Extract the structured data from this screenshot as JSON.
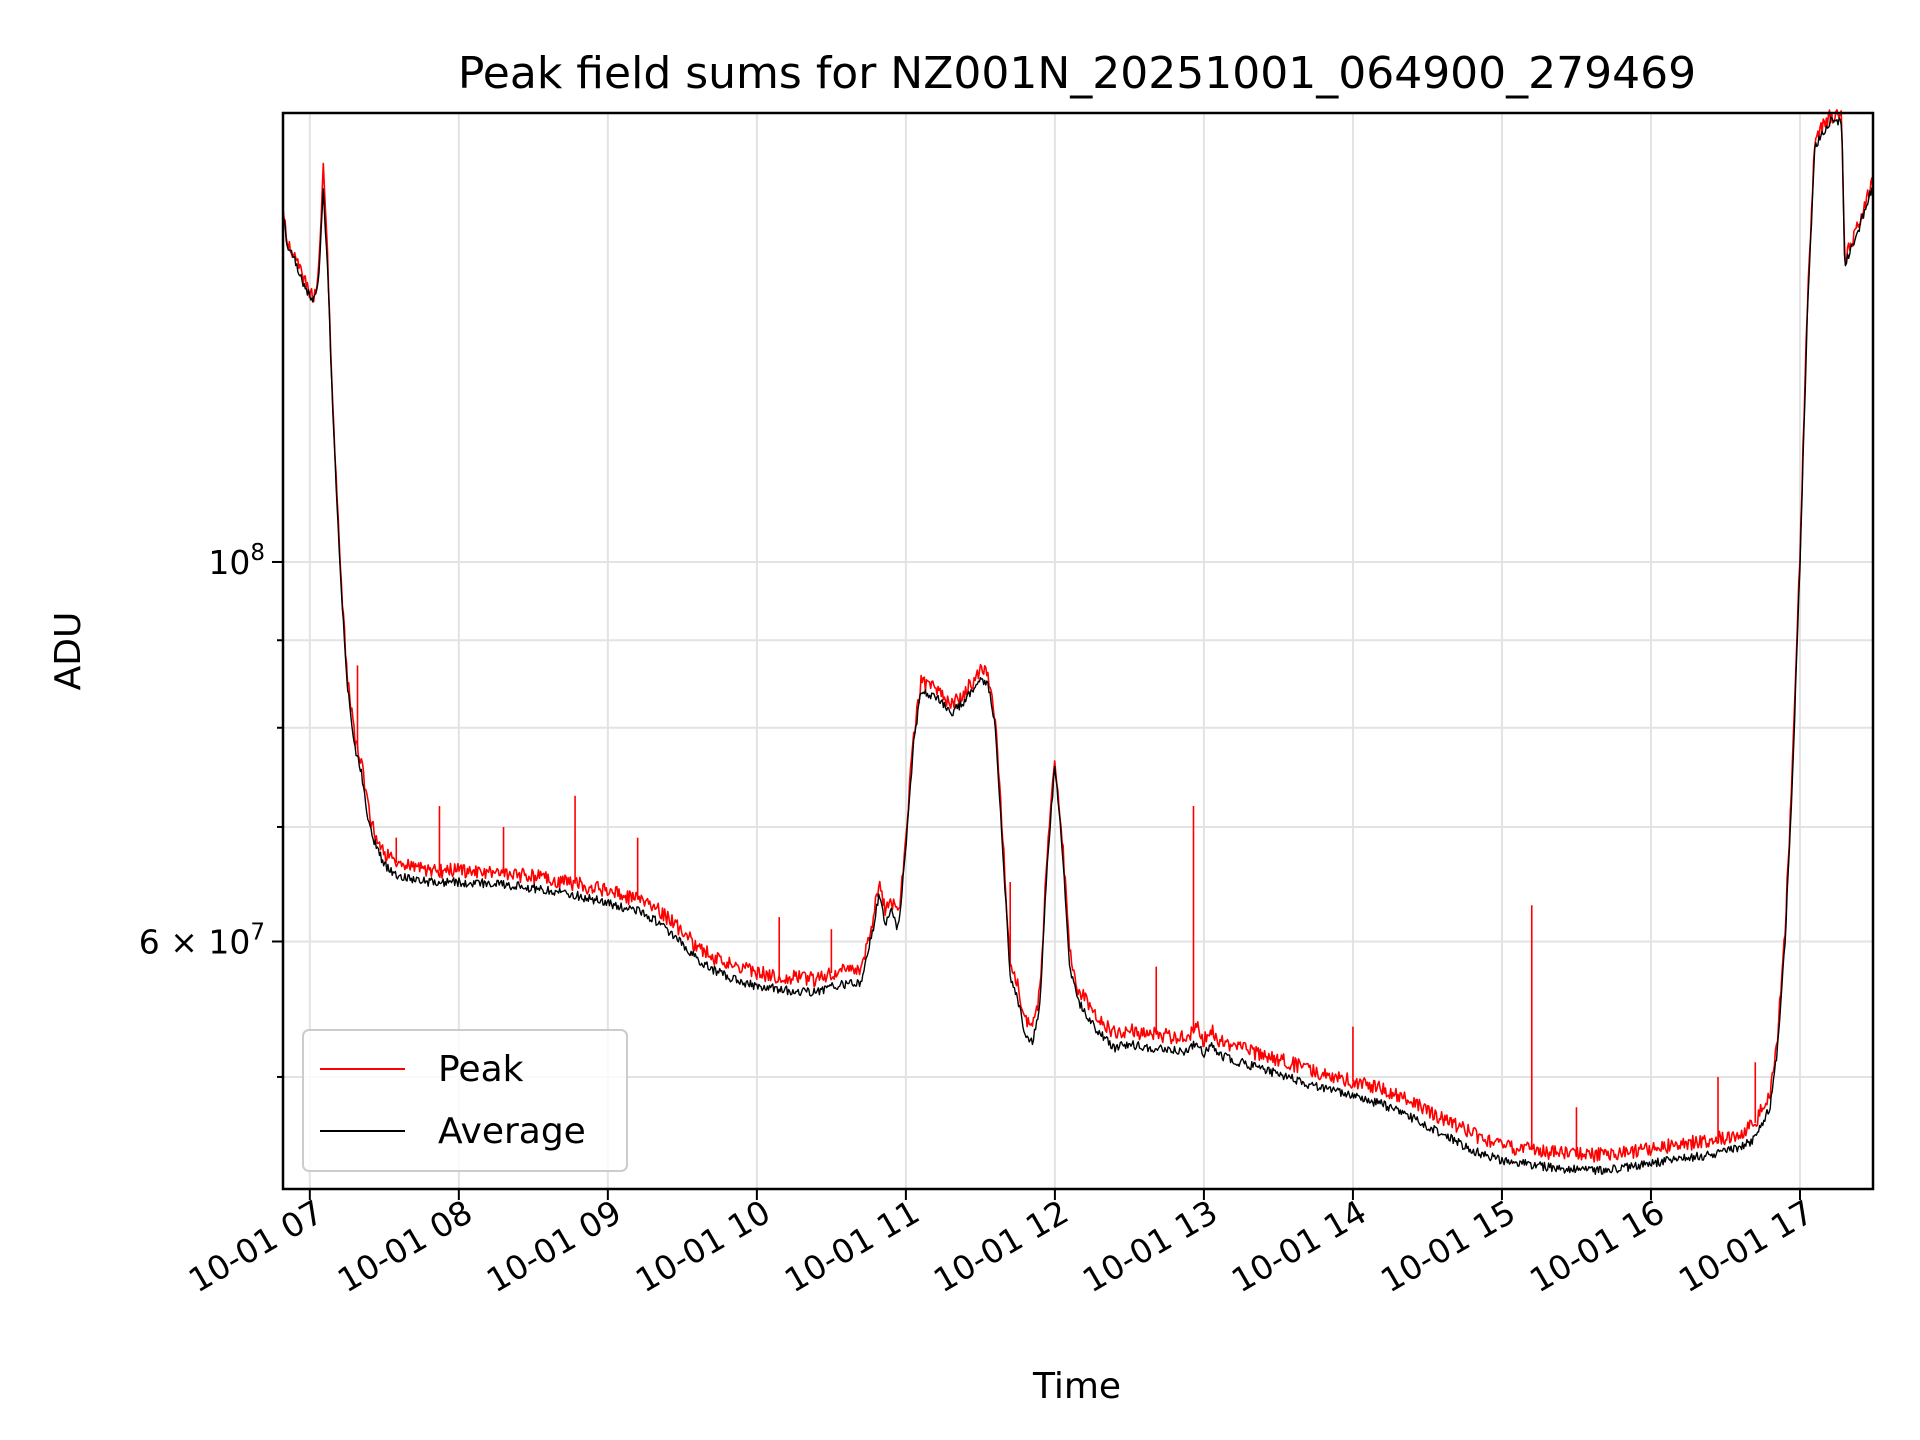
{
  "chart_data": {
    "type": "line",
    "title": "Peak field sums for NZ001N_20251001_064900_279469",
    "xlabel": "Time",
    "ylabel": "ADU",
    "yscale": "log",
    "grid": true,
    "legend_position": "lower-left",
    "xlim": [
      6.82,
      17.49
    ],
    "ylim": [
      43000000,
      183000000
    ],
    "x_ticks": [
      {
        "value": 7,
        "label": "10-01 07"
      },
      {
        "value": 8,
        "label": "10-01 08"
      },
      {
        "value": 9,
        "label": "10-01 09"
      },
      {
        "value": 10,
        "label": "10-01 10"
      },
      {
        "value": 11,
        "label": "10-01 11"
      },
      {
        "value": 12,
        "label": "10-01 12"
      },
      {
        "value": 13,
        "label": "10-01 13"
      },
      {
        "value": 14,
        "label": "10-01 14"
      },
      {
        "value": 15,
        "label": "10-01 15"
      },
      {
        "value": 16,
        "label": "10-01 16"
      },
      {
        "value": 17,
        "label": "10-01 17"
      }
    ],
    "y_major_ticks": [
      {
        "value": 100000000,
        "label_base": "10",
        "label_exp": "8"
      },
      {
        "value": 60000000,
        "label_mantissa": "6",
        "label_times": "×",
        "label_base": "10",
        "label_exp": "7"
      }
    ],
    "y_minor_grid": [
      50000000,
      70000000,
      80000000,
      90000000
    ],
    "series": [
      {
        "name": "Average",
        "color": "#000000",
        "points": [
          [
            6.82,
            160000000
          ],
          [
            6.85,
            153000000
          ],
          [
            6.9,
            150000000
          ],
          [
            6.95,
            146000000
          ],
          [
            7.0,
            143000000
          ],
          [
            7.03,
            142000000
          ],
          [
            7.06,
            146000000
          ],
          [
            7.09,
            165000000
          ],
          [
            7.12,
            148000000
          ],
          [
            7.15,
            125000000
          ],
          [
            7.2,
            100000000
          ],
          [
            7.25,
            85000000
          ],
          [
            7.3,
            78000000
          ],
          [
            7.35,
            75000000
          ],
          [
            7.4,
            70000000
          ],
          [
            7.45,
            68000000
          ],
          [
            7.5,
            66500000
          ],
          [
            7.6,
            65500000
          ],
          [
            7.8,
            65000000
          ],
          [
            8.0,
            65000000
          ],
          [
            8.3,
            64800000
          ],
          [
            8.6,
            64300000
          ],
          [
            8.8,
            63800000
          ],
          [
            9.0,
            63200000
          ],
          [
            9.2,
            62500000
          ],
          [
            9.35,
            61500000
          ],
          [
            9.5,
            59800000
          ],
          [
            9.6,
            58600000
          ],
          [
            9.7,
            57800000
          ],
          [
            9.85,
            57000000
          ],
          [
            10.0,
            56500000
          ],
          [
            10.2,
            56200000
          ],
          [
            10.4,
            56000000
          ],
          [
            10.5,
            56500000
          ],
          [
            10.7,
            56800000
          ],
          [
            10.78,
            61000000
          ],
          [
            10.82,
            64000000
          ],
          [
            10.86,
            61500000
          ],
          [
            10.9,
            62500000
          ],
          [
            10.95,
            61000000
          ],
          [
            11.0,
            68000000
          ],
          [
            11.05,
            78000000
          ],
          [
            11.1,
            84000000
          ],
          [
            11.2,
            83500000
          ],
          [
            11.3,
            81500000
          ],
          [
            11.4,
            83000000
          ],
          [
            11.5,
            85500000
          ],
          [
            11.55,
            85000000
          ],
          [
            11.6,
            80000000
          ],
          [
            11.65,
            68000000
          ],
          [
            11.7,
            57000000
          ],
          [
            11.75,
            55500000
          ],
          [
            11.8,
            53000000
          ],
          [
            11.85,
            52500000
          ],
          [
            11.9,
            55000000
          ],
          [
            11.95,
            67000000
          ],
          [
            12.0,
            76000000
          ],
          [
            12.05,
            68000000
          ],
          [
            12.1,
            58000000
          ],
          [
            12.15,
            55500000
          ],
          [
            12.2,
            54500000
          ],
          [
            12.3,
            53000000
          ],
          [
            12.4,
            52000000
          ],
          [
            12.5,
            52300000
          ],
          [
            12.6,
            52000000
          ],
          [
            12.8,
            51800000
          ],
          [
            12.9,
            51800000
          ],
          [
            12.95,
            52500000
          ],
          [
            13.0,
            51500000
          ],
          [
            13.05,
            52200000
          ],
          [
            13.1,
            51500000
          ],
          [
            13.3,
            50800000
          ],
          [
            13.5,
            50200000
          ],
          [
            13.7,
            49500000
          ],
          [
            14.0,
            48700000
          ],
          [
            14.2,
            48200000
          ],
          [
            14.4,
            47300000
          ],
          [
            14.6,
            46300000
          ],
          [
            14.8,
            45300000
          ],
          [
            15.0,
            44700000
          ],
          [
            15.2,
            44400000
          ],
          [
            15.4,
            44200000
          ],
          [
            15.6,
            44100000
          ],
          [
            15.8,
            44200000
          ],
          [
            16.0,
            44500000
          ],
          [
            16.2,
            44800000
          ],
          [
            16.4,
            45000000
          ],
          [
            16.5,
            45200000
          ],
          [
            16.6,
            45500000
          ],
          [
            16.7,
            46000000
          ],
          [
            16.8,
            48000000
          ],
          [
            16.85,
            52000000
          ],
          [
            16.9,
            60000000
          ],
          [
            16.95,
            75000000
          ],
          [
            17.0,
            100000000
          ],
          [
            17.05,
            140000000
          ],
          [
            17.1,
            175000000
          ],
          [
            17.2,
            181000000
          ],
          [
            17.28,
            181000000
          ],
          [
            17.3,
            149000000
          ],
          [
            17.4,
            157000000
          ],
          [
            17.49,
            166000000
          ]
        ]
      },
      {
        "name": "Peak",
        "color": "#ff0000",
        "points": [
          [
            6.82,
            161000000
          ],
          [
            6.85,
            154000000
          ],
          [
            6.9,
            151000000
          ],
          [
            6.95,
            147000000
          ],
          [
            7.0,
            144000000
          ],
          [
            7.03,
            143000000
          ],
          [
            7.06,
            148000000
          ],
          [
            7.09,
            170000000
          ],
          [
            7.12,
            150000000
          ],
          [
            7.15,
            126000000
          ],
          [
            7.2,
            101000000
          ],
          [
            7.25,
            86000000
          ],
          [
            7.3,
            79000000
          ],
          [
            7.35,
            76000000
          ],
          [
            7.4,
            71000000
          ],
          [
            7.45,
            69000000
          ],
          [
            7.5,
            67500000
          ],
          [
            7.6,
            66500000
          ],
          [
            7.8,
            66000000
          ],
          [
            8.0,
            66000000
          ],
          [
            8.3,
            65800000
          ],
          [
            8.6,
            65300000
          ],
          [
            8.8,
            64800000
          ],
          [
            9.0,
            64200000
          ],
          [
            9.2,
            63500000
          ],
          [
            9.35,
            62500000
          ],
          [
            9.5,
            60800000
          ],
          [
            9.6,
            59600000
          ],
          [
            9.7,
            58800000
          ],
          [
            9.85,
            58000000
          ],
          [
            10.0,
            57500000
          ],
          [
            10.2,
            57200000
          ],
          [
            10.4,
            57000000
          ],
          [
            10.5,
            57500000
          ],
          [
            10.7,
            57800000
          ],
          [
            10.78,
            62000000
          ],
          [
            10.82,
            65000000
          ],
          [
            10.86,
            62500000
          ],
          [
            10.9,
            63500000
          ],
          [
            10.95,
            62000000
          ],
          [
            11.0,
            69000000
          ],
          [
            11.05,
            79000000
          ],
          [
            11.1,
            85000000
          ],
          [
            11.2,
            84500000
          ],
          [
            11.3,
            82500000
          ],
          [
            11.4,
            84000000
          ],
          [
            11.5,
            86500000
          ],
          [
            11.55,
            86000000
          ],
          [
            11.6,
            81000000
          ],
          [
            11.65,
            69000000
          ],
          [
            11.7,
            58000000
          ],
          [
            11.75,
            56500000
          ],
          [
            11.8,
            54000000
          ],
          [
            11.85,
            53500000
          ],
          [
            11.9,
            56000000
          ],
          [
            11.95,
            68000000
          ],
          [
            12.0,
            77000000
          ],
          [
            12.05,
            69000000
          ],
          [
            12.1,
            59000000
          ],
          [
            12.15,
            56500000
          ],
          [
            12.2,
            55500000
          ],
          [
            12.3,
            54000000
          ],
          [
            12.4,
            53000000
          ],
          [
            12.5,
            53300000
          ],
          [
            12.6,
            53000000
          ],
          [
            12.8,
            52800000
          ],
          [
            12.9,
            52800000
          ],
          [
            12.95,
            53500000
          ],
          [
            13.0,
            52500000
          ],
          [
            13.05,
            53200000
          ],
          [
            13.1,
            52500000
          ],
          [
            13.3,
            51800000
          ],
          [
            13.5,
            51200000
          ],
          [
            13.7,
            50500000
          ],
          [
            14.0,
            49700000
          ],
          [
            14.2,
            49200000
          ],
          [
            14.4,
            48300000
          ],
          [
            14.6,
            47300000
          ],
          [
            14.8,
            46300000
          ],
          [
            15.0,
            45600000
          ],
          [
            15.2,
            45300000
          ],
          [
            15.4,
            45100000
          ],
          [
            15.6,
            45000000
          ],
          [
            15.8,
            45100000
          ],
          [
            16.0,
            45400000
          ],
          [
            16.2,
            45700000
          ],
          [
            16.4,
            45900000
          ],
          [
            16.5,
            46100000
          ],
          [
            16.6,
            46400000
          ],
          [
            16.7,
            47000000
          ],
          [
            16.8,
            49000000
          ],
          [
            16.85,
            53000000
          ],
          [
            16.9,
            61000000
          ],
          [
            16.95,
            76000000
          ],
          [
            17.0,
            101000000
          ],
          [
            17.05,
            142000000
          ],
          [
            17.1,
            177000000
          ],
          [
            17.2,
            182000000
          ],
          [
            17.28,
            182000000
          ],
          [
            17.3,
            150000000
          ],
          [
            17.4,
            158000000
          ],
          [
            17.49,
            167000000
          ]
        ],
        "spikes": [
          [
            7.32,
            87000000
          ],
          [
            7.58,
            69000000
          ],
          [
            7.87,
            72000000
          ],
          [
            8.3,
            70000000
          ],
          [
            8.78,
            73000000
          ],
          [
            9.2,
            69000000
          ],
          [
            10.15,
            62000000
          ],
          [
            10.5,
            61000000
          ],
          [
            11.7,
            65000000
          ],
          [
            12.68,
            58000000
          ],
          [
            12.93,
            72000000
          ],
          [
            14.0,
            53500000
          ],
          [
            15.2,
            63000000
          ],
          [
            15.5,
            48000000
          ],
          [
            16.45,
            50000000
          ],
          [
            16.7,
            51000000
          ]
        ]
      }
    ]
  }
}
